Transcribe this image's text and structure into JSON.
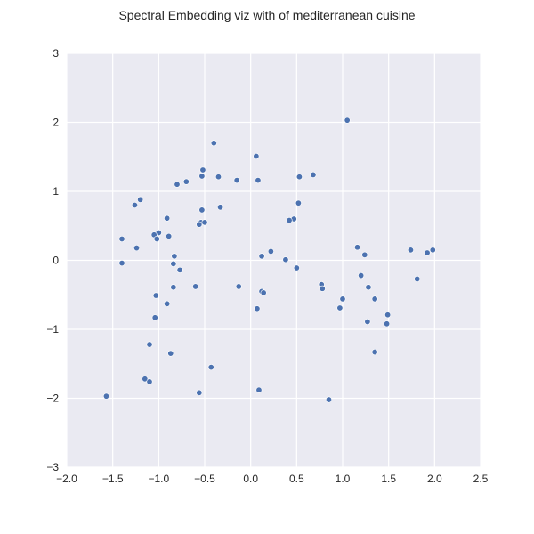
{
  "chart_data": {
    "type": "scatter",
    "title": "Spectral Embedding viz with of mediterranean cuisine",
    "xlabel": "",
    "ylabel": "",
    "xlim": [
      -2.0,
      2.5
    ],
    "ylim": [
      -3,
      3
    ],
    "grid": true,
    "xticks": [
      "−2.0",
      "−1.5",
      "−1.0",
      "−0.5",
      "0.0",
      "0.5",
      "1.0",
      "1.5",
      "2.0",
      "2.5"
    ],
    "xtick_values": [
      -2.0,
      -1.5,
      -1.0,
      -0.5,
      0.0,
      0.5,
      1.0,
      1.5,
      2.0,
      2.5
    ],
    "yticks": [
      "3",
      "2",
      "1",
      "0",
      "−1",
      "−2",
      "−3"
    ],
    "ytick_values": [
      3,
      2,
      1,
      0,
      -1,
      -2,
      -3
    ],
    "point_color": "#4c72b0",
    "points": [
      [
        1.05,
        2.03
      ],
      [
        -0.4,
        1.7
      ],
      [
        0.06,
        1.51
      ],
      [
        -0.52,
        1.31
      ],
      [
        -0.53,
        1.22
      ],
      [
        -0.35,
        1.21
      ],
      [
        0.68,
        1.24
      ],
      [
        0.53,
        1.21
      ],
      [
        -0.7,
        1.14
      ],
      [
        -0.8,
        1.1
      ],
      [
        -0.15,
        1.16
      ],
      [
        0.08,
        1.16
      ],
      [
        -1.2,
        0.88
      ],
      [
        -1.26,
        0.8
      ],
      [
        -0.33,
        0.77
      ],
      [
        0.52,
        0.83
      ],
      [
        -0.53,
        0.73
      ],
      [
        -0.91,
        0.61
      ],
      [
        0.47,
        0.6
      ],
      [
        0.42,
        0.58
      ],
      [
        -0.54,
        0.55
      ],
      [
        -0.56,
        0.52
      ],
      [
        -0.5,
        0.55
      ],
      [
        -1.0,
        0.4
      ],
      [
        -1.05,
        0.37
      ],
      [
        -0.89,
        0.35
      ],
      [
        -1.4,
        0.31
      ],
      [
        -1.02,
        0.31
      ],
      [
        -1.24,
        0.18
      ],
      [
        -0.83,
        0.06
      ],
      [
        0.22,
        0.13
      ],
      [
        0.12,
        0.06
      ],
      [
        -0.84,
        -0.05
      ],
      [
        -1.4,
        -0.04
      ],
      [
        -0.77,
        -0.14
      ],
      [
        0.38,
        0.01
      ],
      [
        0.5,
        -0.11
      ],
      [
        1.16,
        0.19
      ],
      [
        1.24,
        0.08
      ],
      [
        1.74,
        0.15
      ],
      [
        1.98,
        0.15
      ],
      [
        1.92,
        0.11
      ],
      [
        1.81,
        -0.27
      ],
      [
        1.2,
        -0.22
      ],
      [
        -0.84,
        -0.39
      ],
      [
        -0.6,
        -0.38
      ],
      [
        -0.13,
        -0.38
      ],
      [
        0.12,
        -0.45
      ],
      [
        0.14,
        -0.47
      ],
      [
        0.77,
        -0.35
      ],
      [
        0.78,
        -0.41
      ],
      [
        1.28,
        -0.39
      ],
      [
        1.0,
        -0.56
      ],
      [
        1.35,
        -0.56
      ],
      [
        -1.03,
        -0.51
      ],
      [
        -0.91,
        -0.63
      ],
      [
        0.07,
        -0.7
      ],
      [
        0.97,
        -0.69
      ],
      [
        1.49,
        -0.79
      ],
      [
        -1.04,
        -0.83
      ],
      [
        1.27,
        -0.89
      ],
      [
        1.48,
        -0.92
      ],
      [
        -1.1,
        -1.22
      ],
      [
        -0.87,
        -1.35
      ],
      [
        1.35,
        -1.33
      ],
      [
        -0.43,
        -1.55
      ],
      [
        -1.15,
        -1.72
      ],
      [
        -1.1,
        -1.76
      ],
      [
        0.09,
        -1.88
      ],
      [
        -0.56,
        -1.92
      ],
      [
        -1.57,
        -1.97
      ],
      [
        0.85,
        -2.02
      ]
    ]
  }
}
